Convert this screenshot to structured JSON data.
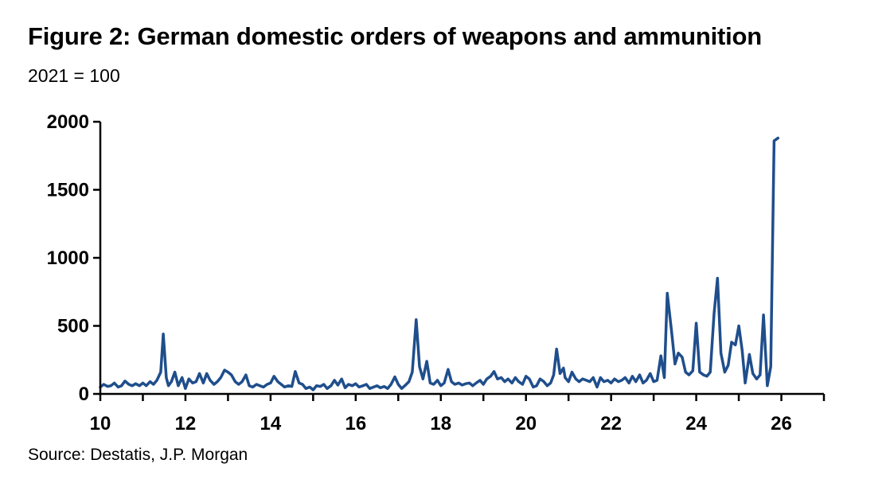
{
  "title": "Figure 2: German domestic orders of weapons and ammunition",
  "subtitle": "2021 = 100",
  "source": "Source: Destatis, J.P. Morgan",
  "colors": {
    "series": "#1f4e8c",
    "axis": "#000000"
  },
  "chart_data": {
    "type": "line",
    "title": "Figure 2: German domestic orders of weapons and ammunition",
    "subtitle": "2021 = 100",
    "xlabel": "",
    "ylabel": "",
    "xlim": [
      10,
      27
    ],
    "ylim": [
      0,
      2000
    ],
    "x_ticks": [
      10,
      12,
      14,
      16,
      18,
      20,
      22,
      24,
      26
    ],
    "x_tick_labels": [
      "10",
      "12",
      "14",
      "16",
      "18",
      "20",
      "22",
      "24",
      "26"
    ],
    "y_ticks": [
      0,
      500,
      1000,
      1500,
      2000
    ],
    "y_tick_labels": [
      "0",
      "500",
      "1000",
      "1500",
      "2000"
    ],
    "grid": false,
    "series": [
      {
        "points": [
          [
            10.0,
            50
          ],
          [
            10.08,
            70
          ],
          [
            10.17,
            55
          ],
          [
            10.25,
            60
          ],
          [
            10.33,
            80
          ],
          [
            10.42,
            50
          ],
          [
            10.5,
            60
          ],
          [
            10.58,
            95
          ],
          [
            10.67,
            70
          ],
          [
            10.75,
            60
          ],
          [
            10.83,
            75
          ],
          [
            10.92,
            60
          ],
          [
            11.0,
            80
          ],
          [
            11.08,
            60
          ],
          [
            11.17,
            90
          ],
          [
            11.25,
            70
          ],
          [
            11.33,
            100
          ],
          [
            11.42,
            160
          ],
          [
            11.48,
            440
          ],
          [
            11.55,
            120
          ],
          [
            11.6,
            60
          ],
          [
            11.67,
            90
          ],
          [
            11.75,
            160
          ],
          [
            11.83,
            60
          ],
          [
            11.92,
            120
          ],
          [
            12.0,
            40
          ],
          [
            12.08,
            110
          ],
          [
            12.17,
            80
          ],
          [
            12.25,
            90
          ],
          [
            12.33,
            150
          ],
          [
            12.42,
            80
          ],
          [
            12.5,
            150
          ],
          [
            12.58,
            100
          ],
          [
            12.67,
            70
          ],
          [
            12.75,
            90
          ],
          [
            12.83,
            120
          ],
          [
            12.92,
            175
          ],
          [
            13.0,
            160
          ],
          [
            13.08,
            140
          ],
          [
            13.17,
            90
          ],
          [
            13.25,
            70
          ],
          [
            13.33,
            90
          ],
          [
            13.42,
            140
          ],
          [
            13.5,
            60
          ],
          [
            13.58,
            50
          ],
          [
            13.67,
            70
          ],
          [
            13.75,
            60
          ],
          [
            13.83,
            50
          ],
          [
            13.92,
            70
          ],
          [
            14.0,
            80
          ],
          [
            14.08,
            130
          ],
          [
            14.17,
            90
          ],
          [
            14.25,
            70
          ],
          [
            14.33,
            50
          ],
          [
            14.42,
            60
          ],
          [
            14.5,
            55
          ],
          [
            14.58,
            165
          ],
          [
            14.67,
            80
          ],
          [
            14.75,
            70
          ],
          [
            14.83,
            40
          ],
          [
            14.92,
            50
          ],
          [
            15.0,
            30
          ],
          [
            15.08,
            60
          ],
          [
            15.17,
            55
          ],
          [
            15.25,
            70
          ],
          [
            15.33,
            40
          ],
          [
            15.42,
            60
          ],
          [
            15.5,
            100
          ],
          [
            15.58,
            65
          ],
          [
            15.67,
            110
          ],
          [
            15.75,
            45
          ],
          [
            15.83,
            70
          ],
          [
            15.92,
            60
          ],
          [
            16.0,
            75
          ],
          [
            16.08,
            50
          ],
          [
            16.17,
            60
          ],
          [
            16.25,
            70
          ],
          [
            16.33,
            40
          ],
          [
            16.42,
            50
          ],
          [
            16.5,
            60
          ],
          [
            16.58,
            45
          ],
          [
            16.67,
            55
          ],
          [
            16.75,
            40
          ],
          [
            16.83,
            70
          ],
          [
            16.92,
            125
          ],
          [
            17.0,
            70
          ],
          [
            17.08,
            40
          ],
          [
            17.17,
            65
          ],
          [
            17.25,
            90
          ],
          [
            17.33,
            160
          ],
          [
            17.42,
            545
          ],
          [
            17.5,
            200
          ],
          [
            17.58,
            110
          ],
          [
            17.67,
            240
          ],
          [
            17.75,
            80
          ],
          [
            17.83,
            70
          ],
          [
            17.92,
            100
          ],
          [
            18.0,
            60
          ],
          [
            18.08,
            80
          ],
          [
            18.17,
            180
          ],
          [
            18.25,
            90
          ],
          [
            18.33,
            70
          ],
          [
            18.42,
            80
          ],
          [
            18.5,
            65
          ],
          [
            18.58,
            75
          ],
          [
            18.67,
            80
          ],
          [
            18.75,
            60
          ],
          [
            18.83,
            80
          ],
          [
            18.92,
            100
          ],
          [
            19.0,
            70
          ],
          [
            19.08,
            110
          ],
          [
            19.17,
            130
          ],
          [
            19.25,
            165
          ],
          [
            19.33,
            110
          ],
          [
            19.42,
            120
          ],
          [
            19.5,
            90
          ],
          [
            19.58,
            110
          ],
          [
            19.67,
            80
          ],
          [
            19.75,
            120
          ],
          [
            19.83,
            90
          ],
          [
            19.92,
            70
          ],
          [
            20.0,
            130
          ],
          [
            20.08,
            110
          ],
          [
            20.17,
            50
          ],
          [
            20.25,
            60
          ],
          [
            20.33,
            110
          ],
          [
            20.42,
            90
          ],
          [
            20.5,
            60
          ],
          [
            20.58,
            80
          ],
          [
            20.65,
            140
          ],
          [
            20.72,
            330
          ],
          [
            20.8,
            150
          ],
          [
            20.88,
            190
          ],
          [
            20.92,
            120
          ],
          [
            21.0,
            90
          ],
          [
            21.08,
            160
          ],
          [
            21.17,
            110
          ],
          [
            21.25,
            90
          ],
          [
            21.33,
            110
          ],
          [
            21.42,
            100
          ],
          [
            21.5,
            90
          ],
          [
            21.58,
            120
          ],
          [
            21.67,
            50
          ],
          [
            21.75,
            120
          ],
          [
            21.83,
            90
          ],
          [
            21.92,
            100
          ],
          [
            22.0,
            80
          ],
          [
            22.08,
            110
          ],
          [
            22.17,
            90
          ],
          [
            22.25,
            100
          ],
          [
            22.33,
            120
          ],
          [
            22.42,
            80
          ],
          [
            22.5,
            130
          ],
          [
            22.58,
            90
          ],
          [
            22.67,
            140
          ],
          [
            22.75,
            80
          ],
          [
            22.83,
            100
          ],
          [
            22.92,
            150
          ],
          [
            23.0,
            90
          ],
          [
            23.08,
            100
          ],
          [
            23.17,
            280
          ],
          [
            23.25,
            120
          ],
          [
            23.32,
            740
          ],
          [
            23.42,
            460
          ],
          [
            23.5,
            220
          ],
          [
            23.58,
            300
          ],
          [
            23.67,
            270
          ],
          [
            23.75,
            160
          ],
          [
            23.83,
            140
          ],
          [
            23.92,
            170
          ],
          [
            24.0,
            520
          ],
          [
            24.08,
            160
          ],
          [
            24.17,
            140
          ],
          [
            24.25,
            130
          ],
          [
            24.33,
            160
          ],
          [
            24.42,
            590
          ],
          [
            24.5,
            850
          ],
          [
            24.58,
            300
          ],
          [
            24.67,
            160
          ],
          [
            24.75,
            210
          ],
          [
            24.83,
            380
          ],
          [
            24.92,
            360
          ],
          [
            25.0,
            500
          ],
          [
            25.08,
            320
          ],
          [
            25.15,
            80
          ],
          [
            25.25,
            290
          ],
          [
            25.33,
            150
          ],
          [
            25.42,
            110
          ],
          [
            25.5,
            140
          ],
          [
            25.58,
            580
          ],
          [
            25.67,
            60
          ],
          [
            25.75,
            200
          ],
          [
            25.83,
            1860
          ],
          [
            25.92,
            1880
          ]
        ]
      }
    ]
  }
}
